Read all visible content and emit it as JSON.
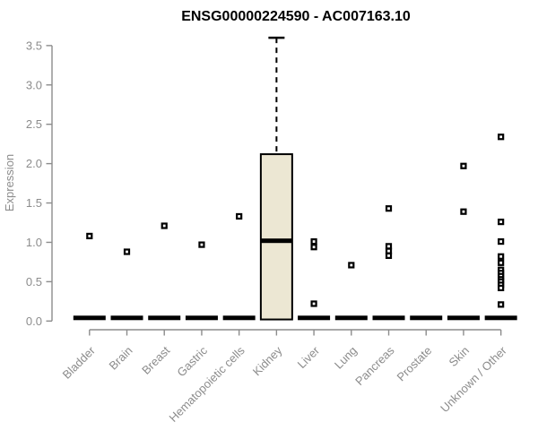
{
  "page": {
    "background": "#ffffff"
  },
  "chart_data": {
    "type": "boxplot",
    "title": "ENSG00000224590 - AC007163.10",
    "ylabel": "Expression",
    "xlabel": "",
    "ylim": [
      0,
      3.6
    ],
    "yticks": [
      0.0,
      0.5,
      1.0,
      1.5,
      2.0,
      2.5,
      3.0,
      3.5
    ],
    "ytick_labels": [
      "0.0",
      "0.5",
      "1.0",
      "1.5",
      "2.0",
      "2.5",
      "3.0",
      "3.5"
    ],
    "grid": false,
    "legend": "none",
    "categories": [
      "Bladder",
      "Brain",
      "Breast",
      "Gastric",
      "Hematopoietic cells",
      "Kidney",
      "Liver",
      "Lung",
      "Pancreas",
      "Prostate",
      "Skin",
      "Unknown / Other"
    ],
    "boxes": [
      {
        "name": "Bladder",
        "q1": 0.02,
        "median": 0.04,
        "q3": 0.06,
        "whisker_high": null,
        "whisker_low": null,
        "outliers": [
          1.08
        ]
      },
      {
        "name": "Brain",
        "q1": 0.02,
        "median": 0.04,
        "q3": 0.06,
        "whisker_high": null,
        "whisker_low": null,
        "outliers": [
          0.88
        ]
      },
      {
        "name": "Breast",
        "q1": 0.02,
        "median": 0.04,
        "q3": 0.06,
        "whisker_high": null,
        "whisker_low": null,
        "outliers": [
          1.21
        ]
      },
      {
        "name": "Gastric",
        "q1": 0.02,
        "median": 0.04,
        "q3": 0.06,
        "whisker_high": null,
        "whisker_low": null,
        "outliers": [
          0.97
        ]
      },
      {
        "name": "Hematopoietic cells",
        "q1": 0.02,
        "median": 0.04,
        "q3": 0.06,
        "whisker_high": null,
        "whisker_low": null,
        "outliers": [
          1.33
        ]
      },
      {
        "name": "Kidney",
        "q1": 0.02,
        "median": 1.02,
        "q3": 2.12,
        "whisker_high": 3.6,
        "whisker_low": null,
        "outliers": []
      },
      {
        "name": "Liver",
        "q1": 0.02,
        "median": 0.04,
        "q3": 0.06,
        "whisker_high": null,
        "whisker_low": null,
        "outliers": [
          1.01,
          0.94,
          0.22
        ]
      },
      {
        "name": "Lung",
        "q1": 0.02,
        "median": 0.04,
        "q3": 0.06,
        "whisker_high": null,
        "whisker_low": null,
        "outliers": [
          0.71
        ]
      },
      {
        "name": "Pancreas",
        "q1": 0.02,
        "median": 0.04,
        "q3": 0.06,
        "whisker_high": null,
        "whisker_low": null,
        "outliers": [
          1.43,
          0.95,
          0.89,
          0.83
        ]
      },
      {
        "name": "Prostate",
        "q1": 0.02,
        "median": 0.04,
        "q3": 0.06,
        "whisker_high": null,
        "whisker_low": null,
        "outliers": []
      },
      {
        "name": "Skin",
        "q1": 0.02,
        "median": 0.04,
        "q3": 0.06,
        "whisker_high": null,
        "whisker_low": null,
        "outliers": [
          1.97,
          1.39
        ]
      },
      {
        "name": "Unknown / Other",
        "q1": 0.02,
        "median": 0.04,
        "q3": 0.06,
        "whisker_high": null,
        "whisker_low": null,
        "outliers": [
          2.34,
          1.26,
          1.01,
          0.82,
          0.74,
          0.65,
          0.61,
          0.57,
          0.53,
          0.5,
          0.46,
          0.42,
          0.21
        ]
      }
    ],
    "colors": {
      "box_fill": "#ECE7D3",
      "box_stroke": "#000000",
      "median": "#000000",
      "outlier": "#000000",
      "axis": "#8C8C8C",
      "tick_label": "#8C8C8C",
      "title": "#000000"
    }
  }
}
